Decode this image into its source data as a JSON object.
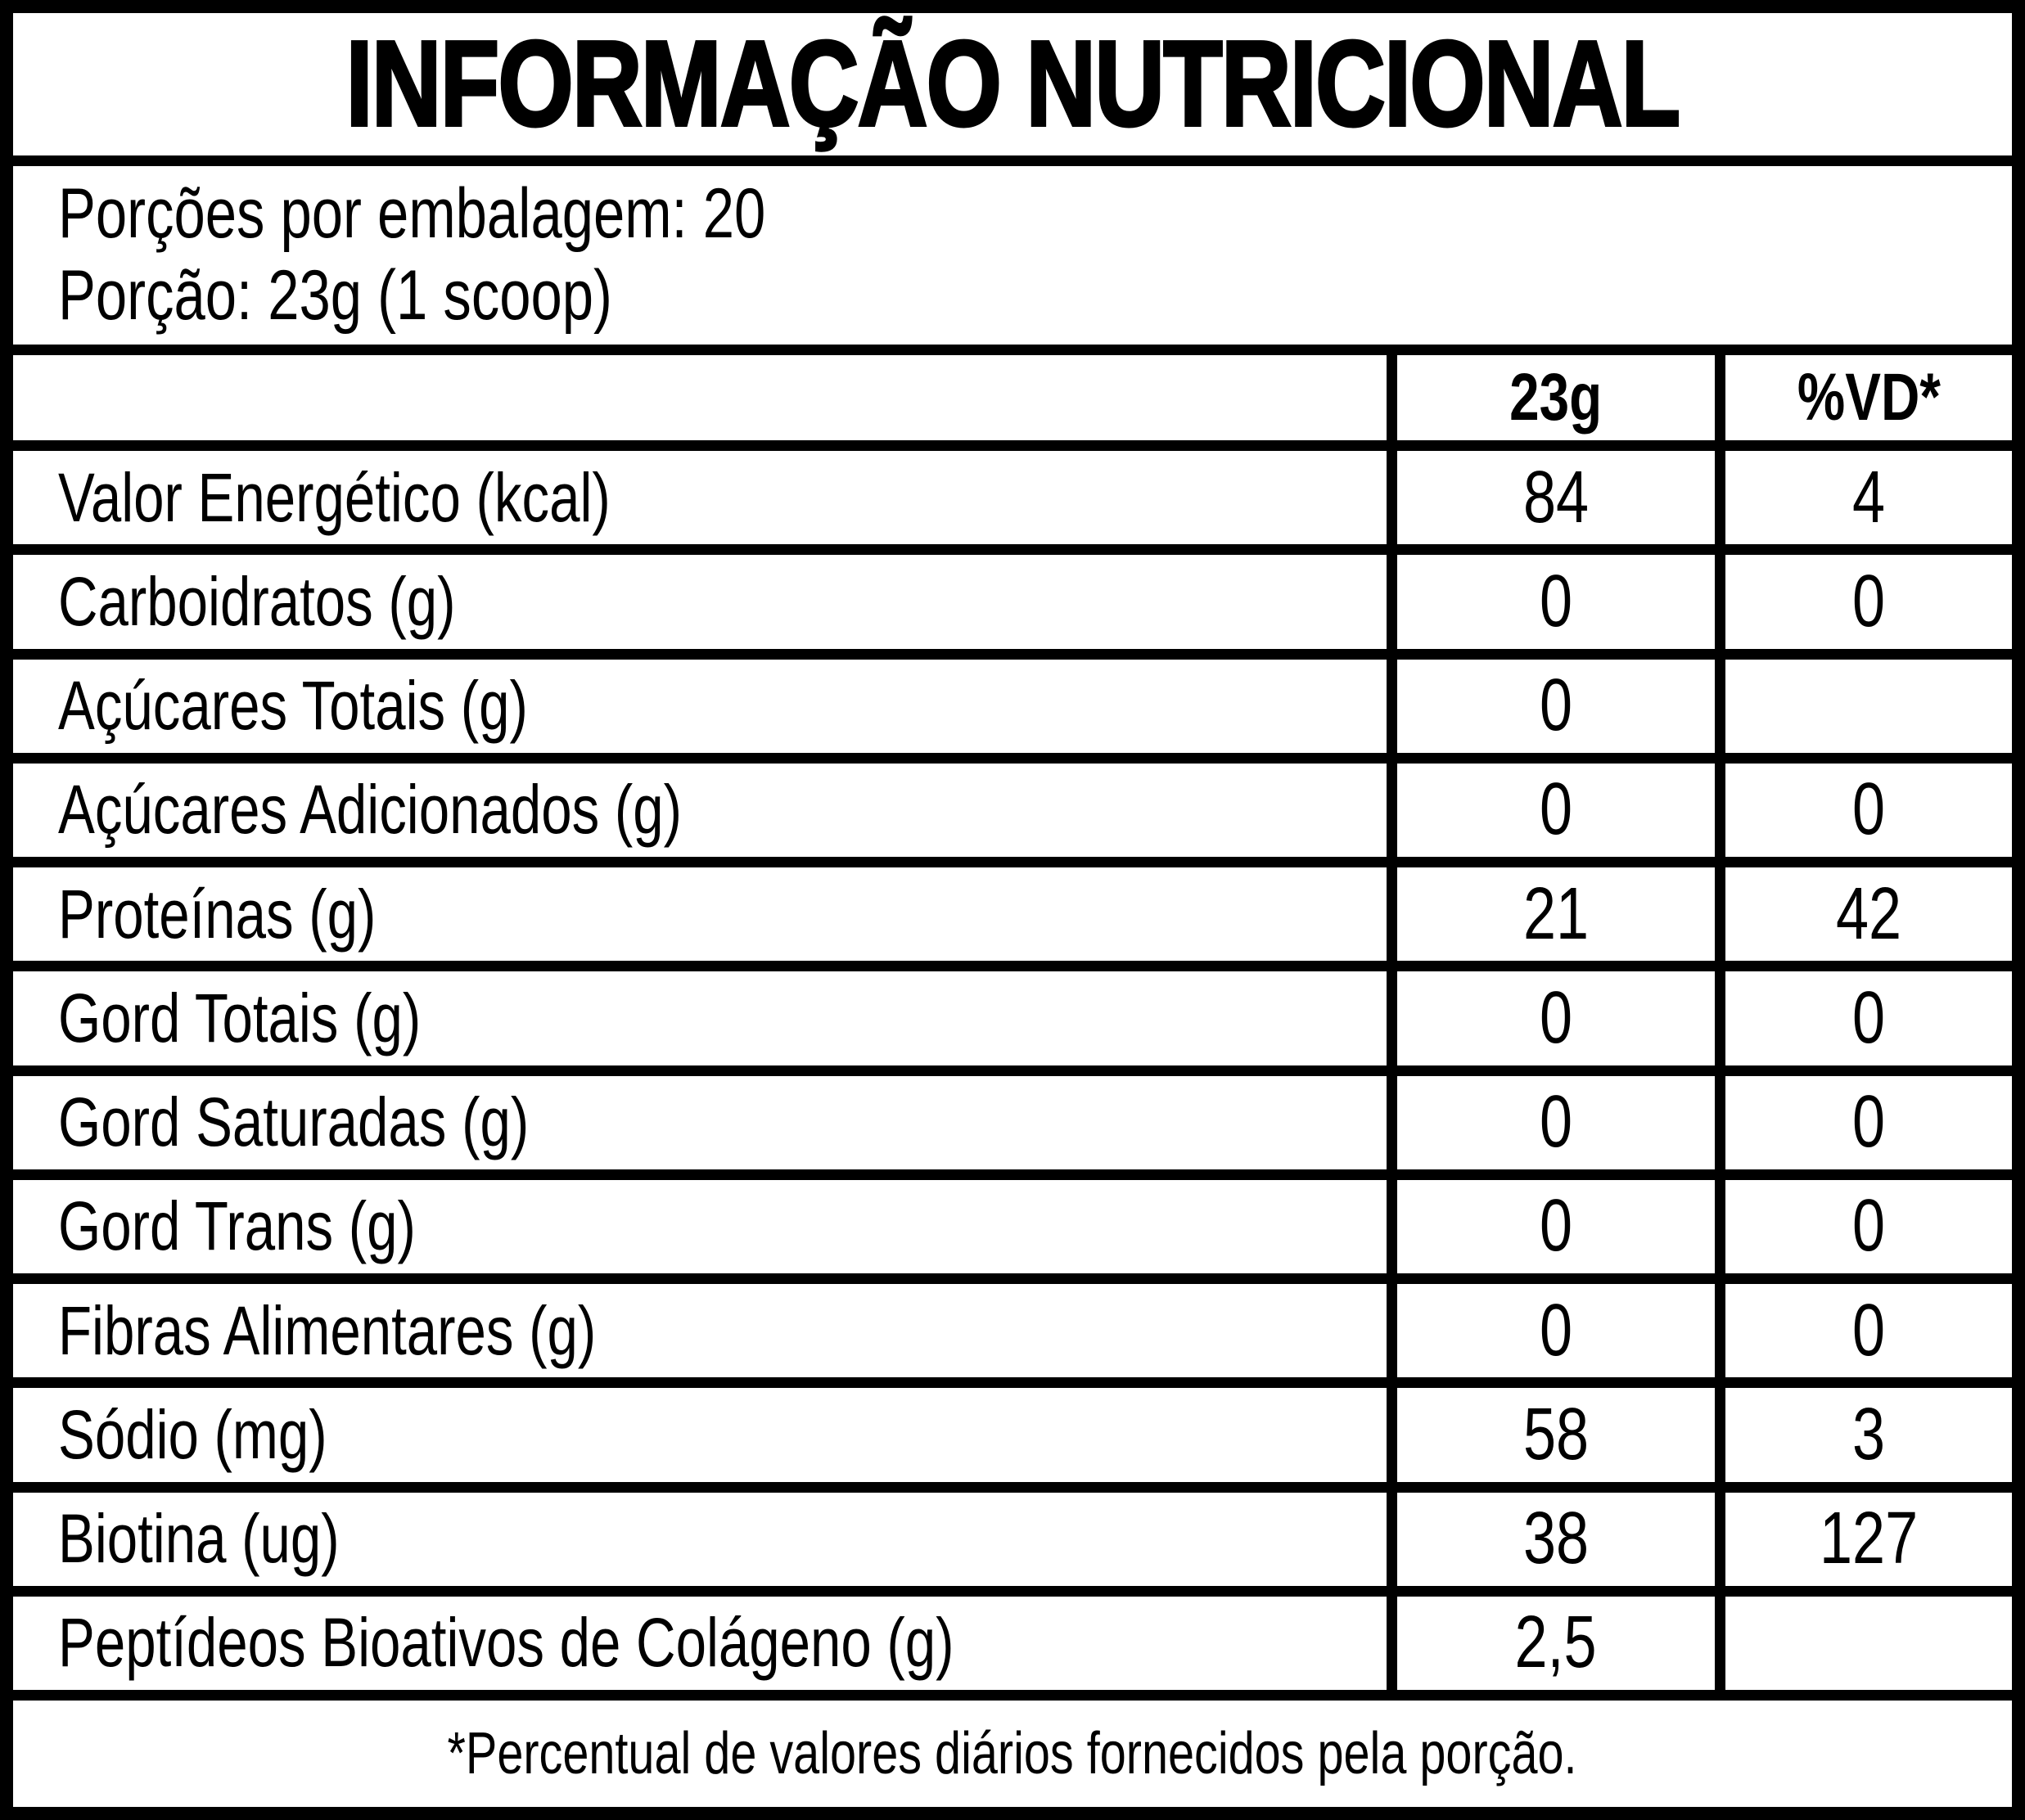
{
  "title": "INFORMAÇÃO NUTRICIONAL",
  "serving_info": {
    "line1": "Porções por embalagem: 20",
    "line2": "Porção: 23g (1 scoop)"
  },
  "table": {
    "columns": [
      "",
      "23g",
      "%VD*"
    ],
    "rows": [
      {
        "label": "Valor Energético (kcal)",
        "amount": "84",
        "dv": "4"
      },
      {
        "label": "Carboidratos (g)",
        "amount": "0",
        "dv": "0"
      },
      {
        "label": "Açúcares Totais (g)",
        "amount": "0",
        "dv": ""
      },
      {
        "label": "Açúcares Adicionados (g)",
        "amount": "0",
        "dv": "0"
      },
      {
        "label": "Proteínas (g)",
        "amount": "21",
        "dv": "42"
      },
      {
        "label": "Gord Totais (g)",
        "amount": "0",
        "dv": "0"
      },
      {
        "label": "Gord Saturadas (g)",
        "amount": "0",
        "dv": "0"
      },
      {
        "label": "Gord Trans (g)",
        "amount": "0",
        "dv": "0"
      },
      {
        "label": "Fibras Alimentares (g)",
        "amount": "0",
        "dv": "0"
      },
      {
        "label": "Sódio (mg)",
        "amount": "58",
        "dv": "3"
      },
      {
        "label": "Biotina (ug)",
        "amount": "38",
        "dv": "127"
      },
      {
        "label": "Peptídeos Bioativos de Colágeno (g)",
        "amount": "2,5",
        "dv": ""
      }
    ],
    "footnote": "*Percentual de valores diários fornecidos pela porção."
  },
  "colors": {
    "background": "#000000",
    "cell": "#ffffff",
    "text": "#000000"
  }
}
